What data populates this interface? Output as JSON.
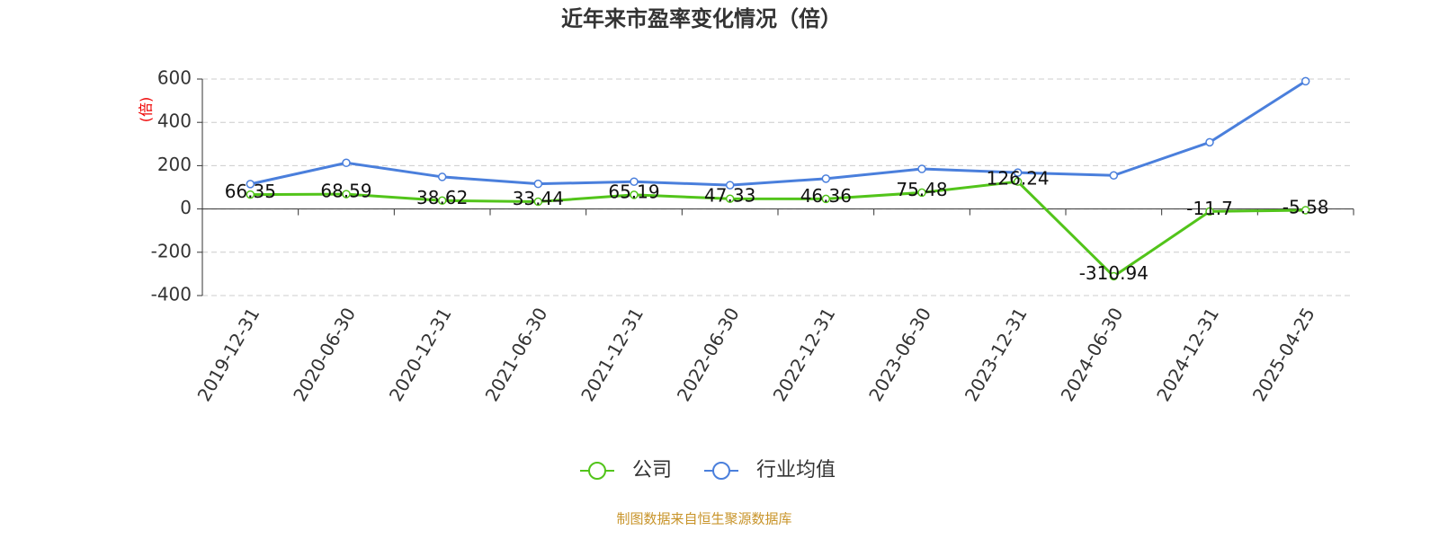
{
  "chart_data": {
    "type": "line",
    "title": "近年来市盈率变化情况（倍）",
    "y_label": "(倍)",
    "source": "制图数据来自恒生聚源数据库",
    "categories": [
      "2019-12-31",
      "2020-06-30",
      "2020-12-31",
      "2021-06-30",
      "2021-12-31",
      "2022-06-30",
      "2022-12-31",
      "2023-06-30",
      "2023-12-31",
      "2024-06-30",
      "2024-12-31",
      "2025-04-25"
    ],
    "series": [
      {
        "name": "公司",
        "color": "#52c41a",
        "values": [
          66.35,
          68.59,
          38.62,
          33.44,
          65.19,
          47.33,
          46.36,
          75.48,
          126.24,
          -310.94,
          -11.7,
          -5.58
        ]
      },
      {
        "name": "行业均值",
        "color": "#4a7fdc",
        "values": [
          115,
          213,
          148,
          116,
          126,
          110,
          140,
          185,
          168,
          155,
          308,
          590
        ]
      }
    ],
    "ylim": [
      -400,
      600
    ],
    "yticks": [
      -400,
      -200,
      0,
      200,
      400,
      600
    ],
    "grid": true
  }
}
